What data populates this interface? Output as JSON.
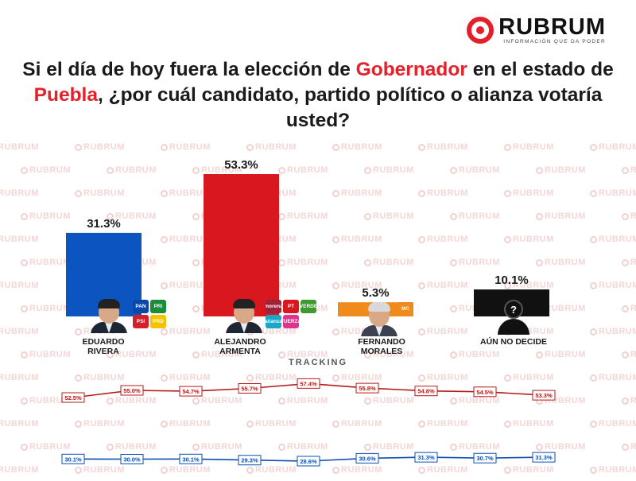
{
  "brand": {
    "name": "RUBRUM",
    "tagline": "INFORMACIÓN QUE DA PODER",
    "watermark": "RUBRUM",
    "accent_color": "#e4202a"
  },
  "question": {
    "part1": "Si el día de hoy fuera la elección de ",
    "highlight1": "Gobernador",
    "part2": " en el estado de ",
    "highlight2": "Puebla",
    "part3": ", ¿por cuál candidato, partido político o alianza votaría usted?"
  },
  "chart_data": [
    {
      "type": "bar",
      "categories": [
        "EDUARDO RIVERA",
        "ALEJANDRO ARMENTA",
        "FERNANDO MORALES",
        "AÚN NO DECIDE"
      ],
      "values": [
        31.3,
        53.3,
        5.3,
        10.1
      ],
      "data_labels": [
        "31.3%",
        "53.3%",
        "5.3%",
        "10.1%"
      ],
      "colors": [
        "#0c55c0",
        "#d8171e",
        "#f08a1c",
        "#111111"
      ],
      "ylim": [
        0,
        53.3
      ],
      "grid": false
    },
    {
      "type": "line",
      "title": "TRACKING",
      "series": [
        {
          "values": [
            52.5,
            55.0,
            54.7,
            55.7,
            57.4,
            55.8,
            54.8,
            54.5,
            53.3
          ],
          "labels": [
            "52.5%",
            "55.0%",
            "54.7%",
            "55.7%",
            "57.4%",
            "55.8%",
            "54.8%",
            "54.5%",
            "53.3%"
          ],
          "color": "#b31b1b"
        },
        {
          "values": [
            30.1,
            30.0,
            30.1,
            29.3,
            28.6,
            30.6,
            31.3,
            30.7,
            31.3
          ],
          "labels": [
            "30.1%",
            "30.0%",
            "30.1%",
            "29.3%",
            "28.6%",
            "30.6%",
            "31.3%",
            "30.7%",
            "31.3%"
          ],
          "color": "#0c4fb0"
        }
      ],
      "grid": false
    }
  ],
  "candidates": [
    {
      "name": "EDUARDO\nRIVERA",
      "parties": [
        {
          "label": "PAN",
          "color": "#0a47a8"
        },
        {
          "label": "PRI",
          "color": "#1b8c3a"
        },
        {
          "label": "PSI",
          "color": "#d4202a"
        },
        {
          "label": "PRD",
          "color": "#f4c300"
        }
      ]
    },
    {
      "name": "ALEJANDRO\nARMENTA",
      "parties": [
        {
          "label": "morena",
          "color": "#a0223a"
        },
        {
          "label": "PT",
          "color": "#d8171e"
        },
        {
          "label": "VERDE",
          "color": "#3c9a2f"
        },
        {
          "label": "alianza",
          "color": "#1aa6c8"
        },
        {
          "label": "FUERZA",
          "color": "#e0348c"
        }
      ]
    },
    {
      "name": "FERNANDO\nMORALES",
      "parties": [
        {
          "label": "MC",
          "color": "#f08a1c"
        }
      ]
    },
    {
      "name": "AÚN NO DECIDE",
      "icon": "unknown-person-icon"
    }
  ]
}
